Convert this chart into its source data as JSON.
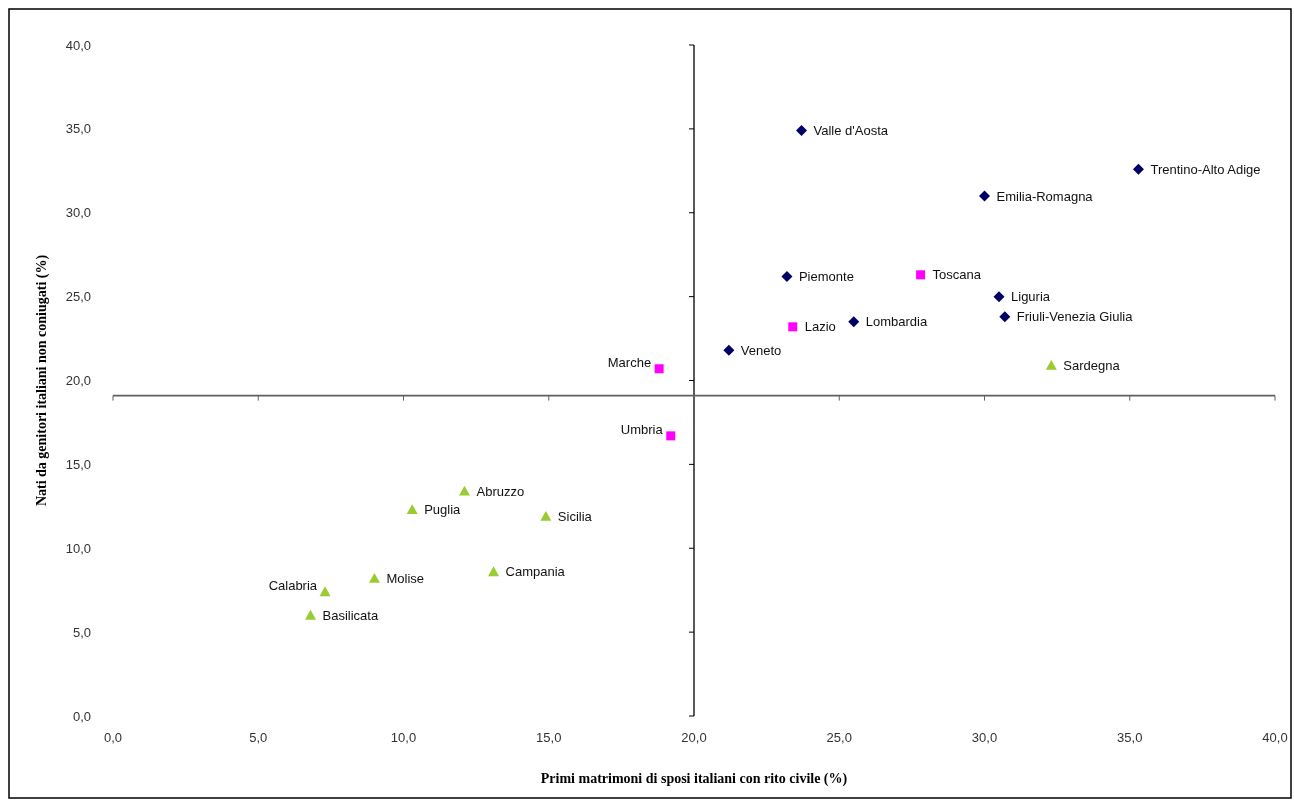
{
  "chart_data": {
    "type": "scatter",
    "xlabel": "Primi matrimoni di sposi italiani con rito civile (%)",
    "ylabel": "Nati da genitori italiani non coniugati (%)",
    "xlim": [
      0,
      40
    ],
    "ylim": [
      0,
      40
    ],
    "xticks": [
      {
        "value": 0,
        "label": "0,0"
      },
      {
        "value": 5,
        "label": "5,0"
      },
      {
        "value": 10,
        "label": "10,0"
      },
      {
        "value": 15,
        "label": "15,0"
      },
      {
        "value": 20,
        "label": "20,0"
      },
      {
        "value": 25,
        "label": "25,0"
      },
      {
        "value": 30,
        "label": "30,0"
      },
      {
        "value": 35,
        "label": "35,0"
      },
      {
        "value": 40,
        "label": "40,0"
      }
    ],
    "yticks": [
      {
        "value": 0,
        "label": "0,0"
      },
      {
        "value": 5,
        "label": "5,0"
      },
      {
        "value": 10,
        "label": "10,0"
      },
      {
        "value": 15,
        "label": "15,0"
      },
      {
        "value": 20,
        "label": "20,0"
      },
      {
        "value": 25,
        "label": "25,0"
      },
      {
        "value": 30,
        "label": "30,0"
      },
      {
        "value": 35,
        "label": "35,0"
      },
      {
        "value": 40,
        "label": "40,0"
      }
    ],
    "ref_lines": [
      {
        "axis": "x",
        "value": 20,
        "color": "#000000"
      },
      {
        "axis": "y",
        "value": 19.1,
        "color": "#606060"
      }
    ],
    "grid": false,
    "series": [
      {
        "color": "#000066",
        "marker": "diamond",
        "x": [
          23.7,
          35.3,
          30.0,
          23.2,
          30.5,
          30.7,
          25.5,
          21.2
        ],
        "values": [
          34.9,
          32.6,
          31.0,
          26.2,
          25.0,
          23.8,
          23.5,
          21.8
        ]
      },
      {
        "color": "#ff00ff",
        "marker": "square",
        "x": [
          27.8,
          23.4,
          18.8,
          19.2
        ],
        "values": [
          26.3,
          23.2,
          20.7,
          16.7
        ]
      },
      {
        "color": "#99cc33",
        "marker": "triangle",
        "x": [
          32.3,
          12.1,
          10.3,
          14.9,
          13.1,
          9.0,
          7.3,
          6.8
        ],
        "values": [
          20.9,
          13.4,
          12.3,
          11.9,
          8.6,
          8.2,
          7.4,
          6.0
        ]
      }
    ],
    "annotations": [
      {
        "text": "Valle d'Aosta",
        "x": 23.7,
        "y": 34.9
      },
      {
        "text": "Trentino-Alto Adige",
        "x": 35.3,
        "y": 32.6
      },
      {
        "text": "Emilia-Romagna",
        "x": 30.0,
        "y": 31.0
      },
      {
        "text": "Piemonte",
        "x": 23.2,
        "y": 26.2
      },
      {
        "text": "Liguria",
        "x": 30.5,
        "y": 25.0
      },
      {
        "text": "Friuli-Venezia Giulia",
        "x": 30.7,
        "y": 23.8
      },
      {
        "text": "Lombardia",
        "x": 25.5,
        "y": 23.5
      },
      {
        "text": "Veneto",
        "x": 21.2,
        "y": 21.8
      },
      {
        "text": "Toscana",
        "x": 27.8,
        "y": 26.3
      },
      {
        "text": "Lazio",
        "x": 23.4,
        "y": 23.2
      },
      {
        "text": "Marche",
        "x": 18.8,
        "y": 20.7
      },
      {
        "text": "Umbria",
        "x": 19.2,
        "y": 16.7
      },
      {
        "text": "Sardegna",
        "x": 32.3,
        "y": 20.9
      },
      {
        "text": "Abruzzo",
        "x": 12.1,
        "y": 13.4
      },
      {
        "text": "Puglia",
        "x": 10.3,
        "y": 12.3
      },
      {
        "text": "Sicilia",
        "x": 14.9,
        "y": 11.9
      },
      {
        "text": "Campania",
        "x": 13.1,
        "y": 8.6
      },
      {
        "text": "Molise",
        "x": 9.0,
        "y": 8.2
      },
      {
        "text": "Calabria",
        "x": 7.3,
        "y": 7.4
      },
      {
        "text": "Basilicata",
        "x": 6.8,
        "y": 6.0
      }
    ]
  }
}
